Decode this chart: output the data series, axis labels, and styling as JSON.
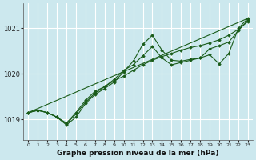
{
  "title": "Graphe pression niveau de la mer (hPa)",
  "bg_color": "#cce8ee",
  "grid_color": "#ffffff",
  "line_color": "#1a5c1a",
  "xlim": [
    -0.5,
    23.5
  ],
  "ylim": [
    1018.55,
    1021.55
  ],
  "yticks": [
    1019,
    1020,
    1021
  ],
  "xticks": [
    0,
    1,
    2,
    3,
    4,
    5,
    6,
    7,
    8,
    9,
    10,
    11,
    12,
    13,
    14,
    15,
    16,
    17,
    18,
    19,
    20,
    21,
    22,
    23
  ],
  "series": [
    {
      "x": [
        0,
        1,
        2,
        3,
        4,
        5,
        6,
        7,
        8,
        9,
        10,
        11,
        12,
        13,
        14,
        15,
        16,
        17,
        18,
        19,
        20,
        21,
        22,
        23
      ],
      "y": [
        1019.15,
        1019.2,
        1019.15,
        1019.05,
        1018.88,
        1019.05,
        1019.35,
        1019.55,
        1019.68,
        1019.82,
        1020.05,
        1020.28,
        1020.65,
        1020.85,
        1020.52,
        1020.3,
        1020.28,
        1020.32,
        1020.35,
        1020.42,
        1020.22,
        1020.45,
        1021.0,
        1021.22
      ]
    },
    {
      "x": [
        0,
        1,
        2,
        3,
        4,
        5,
        6,
        7,
        8,
        9,
        10,
        11,
        12,
        13,
        14,
        15,
        16,
        17,
        18,
        19,
        20,
        21,
        22,
        23
      ],
      "y": [
        1019.15,
        1019.2,
        1019.15,
        1019.05,
        1018.92,
        1019.15,
        1019.42,
        1019.62,
        1019.72,
        1019.88,
        1020.08,
        1020.2,
        1020.4,
        1020.6,
        1020.35,
        1020.2,
        1020.25,
        1020.3,
        1020.35,
        1020.55,
        1020.62,
        1020.7,
        1020.95,
        1021.18
      ]
    },
    {
      "x": [
        0,
        1,
        2,
        3,
        4,
        5,
        6,
        7,
        8,
        9,
        10,
        11,
        12,
        13,
        14,
        15,
        16,
        17,
        18,
        19,
        20,
        21,
        22,
        23
      ],
      "y": [
        1019.15,
        1019.2,
        1019.15,
        1019.05,
        1018.9,
        1019.12,
        1019.38,
        1019.58,
        1019.72,
        1019.85,
        1019.95,
        1020.08,
        1020.2,
        1020.3,
        1020.38,
        1020.45,
        1020.52,
        1020.58,
        1020.62,
        1020.68,
        1020.75,
        1020.85,
        1020.98,
        1021.15
      ]
    },
    {
      "x": [
        0,
        23
      ],
      "y": [
        1019.15,
        1021.22
      ]
    }
  ]
}
